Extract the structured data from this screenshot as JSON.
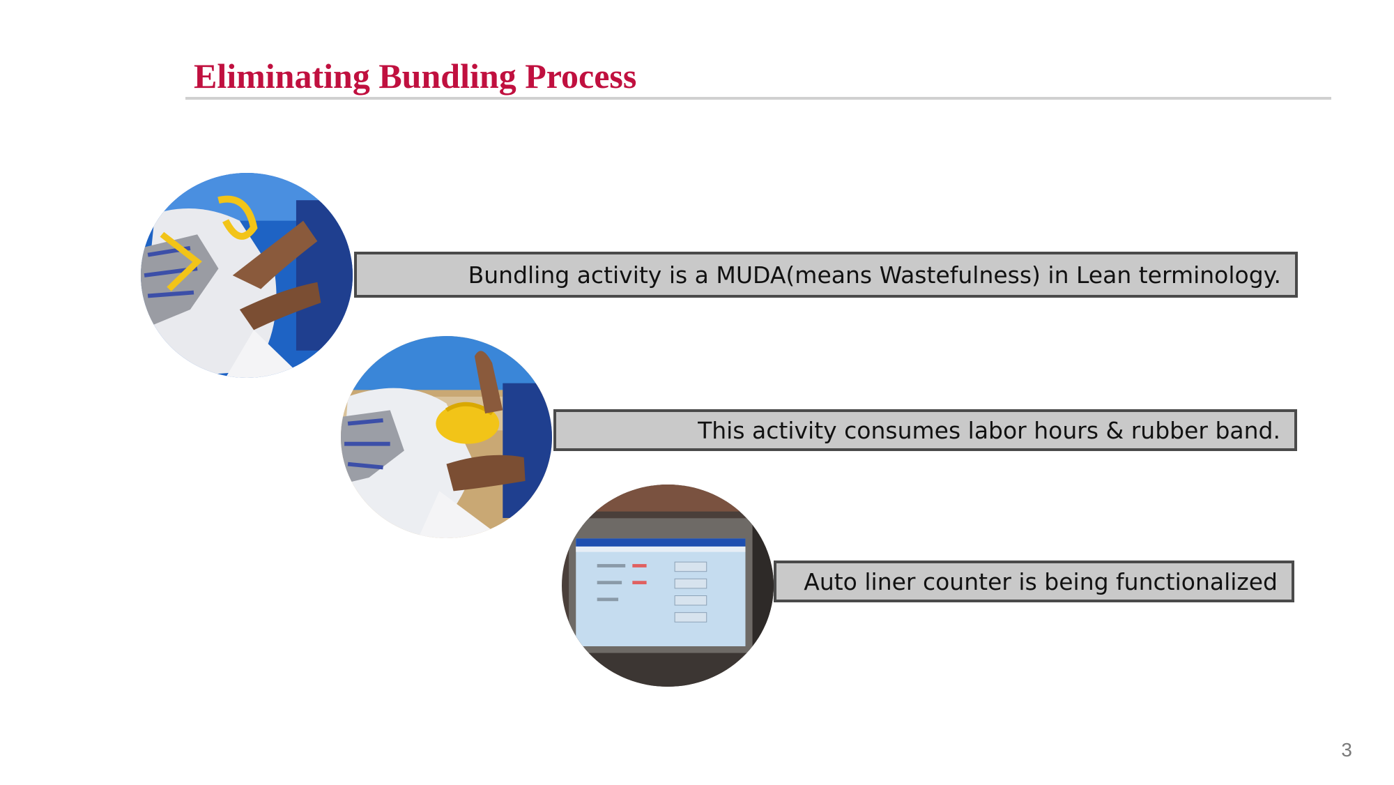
{
  "slide": {
    "title": "Eliminating Bundling Process",
    "page_number": "3"
  },
  "callouts": [
    {
      "text": "Bundling activity is a MUDA(means Wastefulness) in Lean terminology."
    },
    {
      "text": "This activity consumes labor hours & rubber band."
    },
    {
      "text": "Auto liner counter is being functionalized"
    }
  ],
  "photos": [
    {
      "subject": "hands-bundling-gloves-photo"
    },
    {
      "subject": "gloves-with-yellow-rubber-band-photo"
    },
    {
      "subject": "auto-counter-display-photo"
    }
  ],
  "colors": {
    "title": "#c0103f",
    "rule": "#d0d0d0",
    "callout_fill": "#c9c9c9",
    "callout_border": "#4a4a4a"
  }
}
